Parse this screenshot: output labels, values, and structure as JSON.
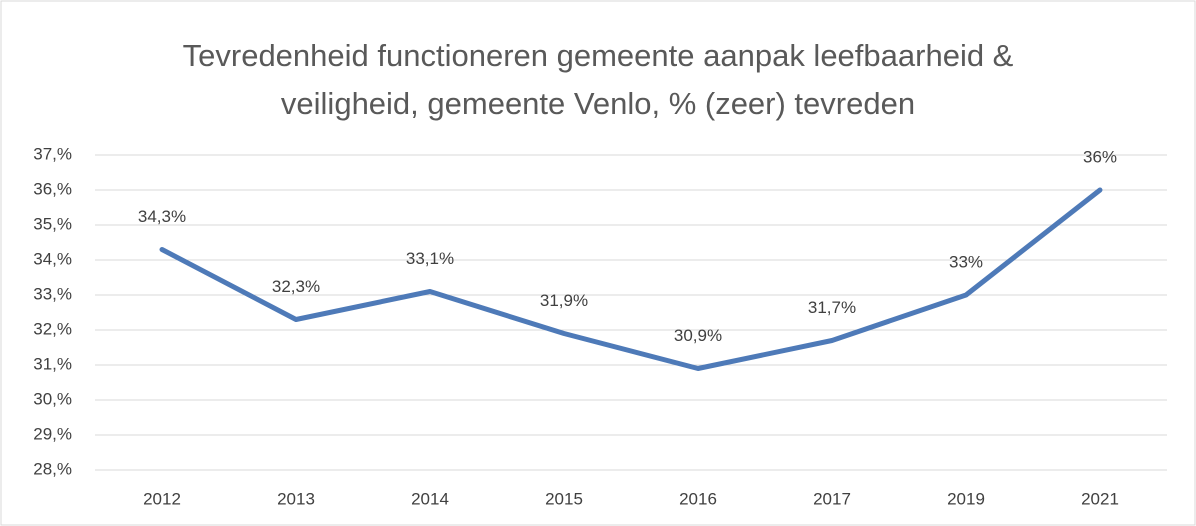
{
  "chart_data": {
    "type": "line",
    "title": [
      "Tevredenheid functioneren gemeente aanpak leefbaarheid &",
      "veiligheid, gemeente Venlo, % (zeer) tevreden"
    ],
    "categories": [
      "2012",
      "2013",
      "2014",
      "2015",
      "2016",
      "2017",
      "2019",
      "2021"
    ],
    "series": [
      {
        "color": "#4e7ab8",
        "values": [
          34.3,
          32.3,
          33.1,
          31.9,
          30.9,
          31.7,
          33,
          36
        ],
        "value_labels": [
          "34,3%",
          "32,3%",
          "33,1%",
          "31,9%",
          "30,9%",
          "31,7%",
          "33%",
          "36%"
        ]
      }
    ],
    "ylim": [
      28,
      37
    ],
    "yticks": [
      {
        "value": 28,
        "label": "28,%"
      },
      {
        "value": 29,
        "label": "29,%"
      },
      {
        "value": 30,
        "label": "30,%"
      },
      {
        "value": 31,
        "label": "31,%"
      },
      {
        "value": 32,
        "label": "32,%"
      },
      {
        "value": 33,
        "label": "33,%"
      },
      {
        "value": 34,
        "label": "34,%"
      },
      {
        "value": 35,
        "label": "35,%"
      },
      {
        "value": 36,
        "label": "36,%"
      },
      {
        "value": 37,
        "label": "37,%"
      }
    ],
    "grid": true
  }
}
